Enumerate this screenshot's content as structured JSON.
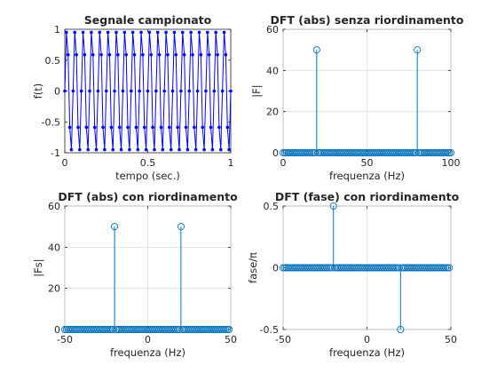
{
  "chart_data": [
    {
      "id": "ax1",
      "type": "line",
      "title": "Segnale campionato",
      "xlabel": "tempo (sec.)",
      "ylabel": "f(t)",
      "xlim": [
        0,
        1
      ],
      "ylim": [
        -1,
        1
      ],
      "xticks": [
        0,
        0.5,
        1
      ],
      "xtick_labels": [
        "0",
        "0.5",
        "1"
      ],
      "yticks": [
        -1,
        -0.5,
        0,
        0.5,
        1
      ],
      "ytick_labels": [
        "-1",
        "-0.5",
        "0",
        "0.5",
        "1"
      ],
      "grid": false,
      "markers": true,
      "color": "#0000ff",
      "series": [
        {
          "x": [
            0,
            0.01,
            0.02,
            0.03,
            0.04,
            0.05,
            0.06,
            0.07,
            0.08,
            0.09,
            0.1,
            0.11,
            0.12,
            0.13,
            0.14,
            0.15,
            0.16,
            0.17,
            0.18,
            0.19,
            0.2,
            0.21,
            0.22,
            0.23,
            0.24,
            0.25,
            0.26,
            0.27,
            0.28,
            0.29,
            0.3,
            0.31,
            0.32,
            0.33,
            0.34,
            0.35,
            0.36,
            0.37,
            0.38,
            0.39,
            0.4,
            0.41,
            0.42,
            0.43,
            0.44,
            0.45,
            0.46,
            0.47,
            0.48,
            0.49,
            0.5,
            0.51,
            0.52,
            0.53,
            0.54,
            0.55,
            0.56,
            0.57,
            0.58,
            0.59,
            0.6,
            0.61,
            0.62,
            0.63,
            0.64,
            0.65,
            0.66,
            0.67,
            0.68,
            0.69,
            0.7,
            0.71,
            0.72,
            0.73,
            0.74,
            0.75,
            0.76,
            0.77,
            0.78,
            0.79,
            0.8,
            0.81,
            0.82,
            0.83,
            0.84,
            0.85,
            0.86,
            0.87,
            0.88,
            0.89,
            0.9,
            0.91,
            0.92,
            0.93,
            0.94,
            0.95,
            0.96,
            0.97,
            0.98,
            0.99,
            1.0
          ],
          "y": [
            0,
            0.951,
            0.588,
            -0.588,
            -0.951,
            0,
            0.951,
            0.588,
            -0.588,
            -0.951,
            0,
            0.951,
            0.588,
            -0.588,
            -0.951,
            0,
            0.951,
            0.588,
            -0.588,
            -0.951,
            0,
            0.951,
            0.588,
            -0.588,
            -0.951,
            0,
            0.951,
            0.588,
            -0.588,
            -0.951,
            0,
            0.951,
            0.588,
            -0.588,
            -0.951,
            0,
            0.951,
            0.588,
            -0.588,
            -0.951,
            0,
            0.951,
            0.588,
            -0.588,
            -0.951,
            0,
            0.951,
            0.588,
            -0.588,
            -0.951,
            0,
            0.951,
            0.588,
            -0.588,
            -0.951,
            0,
            0.951,
            0.588,
            -0.588,
            -0.951,
            0,
            0.951,
            0.588,
            -0.588,
            -0.951,
            0,
            0.951,
            0.588,
            -0.588,
            -0.951,
            0,
            0.951,
            0.588,
            -0.588,
            -0.951,
            0,
            0.951,
            0.588,
            -0.588,
            -0.951,
            0,
            0.951,
            0.588,
            -0.588,
            -0.951,
            0,
            0.951,
            0.588,
            -0.588,
            -0.951,
            0,
            0.951,
            0.588,
            -0.588,
            -0.951,
            0,
            0.951,
            0.588,
            -0.588,
            -0.951,
            0
          ]
        }
      ]
    },
    {
      "id": "ax2",
      "type": "stem",
      "title": "DFT (abs) senza riordinamento",
      "xlabel": "frequenza (Hz)",
      "ylabel": "|F|",
      "xlim": [
        0,
        100
      ],
      "ylim": [
        0,
        60
      ],
      "xticks": [
        0,
        50,
        100
      ],
      "xtick_labels": [
        "0",
        "50",
        "100"
      ],
      "yticks": [
        0,
        20,
        40,
        60
      ],
      "ytick_labels": [
        "0",
        "20",
        "40",
        "60"
      ],
      "grid": true,
      "color": "#0072bd",
      "series": [
        {
          "x": [
            0,
            1,
            2,
            3,
            4,
            5,
            6,
            7,
            8,
            9,
            10,
            11,
            12,
            13,
            14,
            15,
            16,
            17,
            18,
            19,
            20,
            21,
            22,
            23,
            24,
            25,
            26,
            27,
            28,
            29,
            30,
            31,
            32,
            33,
            34,
            35,
            36,
            37,
            38,
            39,
            40,
            41,
            42,
            43,
            44,
            45,
            46,
            47,
            48,
            49,
            50,
            51,
            52,
            53,
            54,
            55,
            56,
            57,
            58,
            59,
            60,
            61,
            62,
            63,
            64,
            65,
            66,
            67,
            68,
            69,
            70,
            71,
            72,
            73,
            74,
            75,
            76,
            77,
            78,
            79,
            80,
            81,
            82,
            83,
            84,
            85,
            86,
            87,
            88,
            89,
            90,
            91,
            92,
            93,
            94,
            95,
            96,
            97,
            98,
            99,
            100
          ],
          "y": [
            0,
            0,
            0,
            0,
            0,
            0,
            0,
            0,
            0,
            0,
            0,
            0,
            0,
            0,
            0,
            0,
            0,
            0,
            0,
            0,
            50,
            0,
            0,
            0,
            0,
            0,
            0,
            0,
            0,
            0,
            0,
            0,
            0,
            0,
            0,
            0,
            0,
            0,
            0,
            0,
            0,
            0,
            0,
            0,
            0,
            0,
            0,
            0,
            0,
            0,
            0,
            0,
            0,
            0,
            0,
            0,
            0,
            0,
            0,
            0,
            0,
            0,
            0,
            0,
            0,
            0,
            0,
            0,
            0,
            0,
            0,
            0,
            0,
            0,
            0,
            0,
            0,
            0,
            0,
            0,
            50,
            0,
            0,
            0,
            0,
            0,
            0,
            0,
            0,
            0,
            0,
            0,
            0,
            0,
            0,
            0,
            0,
            0,
            0,
            0,
            0
          ]
        }
      ]
    },
    {
      "id": "ax3",
      "type": "stem",
      "title": "DFT (abs) con riordinamento",
      "xlabel": "frequenza (Hz)",
      "ylabel": "|Fs|",
      "xlim": [
        -50,
        50
      ],
      "ylim": [
        0,
        60
      ],
      "xticks": [
        -50,
        0,
        50
      ],
      "xtick_labels": [
        "-50",
        "0",
        "50"
      ],
      "yticks": [
        0,
        20,
        40,
        60
      ],
      "ytick_labels": [
        "0",
        "20",
        "40",
        "60"
      ],
      "grid": true,
      "color": "#0072bd",
      "series": [
        {
          "x": [
            -50,
            -49,
            -48,
            -47,
            -46,
            -45,
            -44,
            -43,
            -42,
            -41,
            -40,
            -39,
            -38,
            -37,
            -36,
            -35,
            -34,
            -33,
            -32,
            -31,
            -30,
            -29,
            -28,
            -27,
            -26,
            -25,
            -24,
            -23,
            -22,
            -21,
            -20,
            -19,
            -18,
            -17,
            -16,
            -15,
            -14,
            -13,
            -12,
            -11,
            -10,
            -9,
            -8,
            -7,
            -6,
            -5,
            -4,
            -3,
            -2,
            -1,
            0,
            1,
            2,
            3,
            4,
            5,
            6,
            7,
            8,
            9,
            10,
            11,
            12,
            13,
            14,
            15,
            16,
            17,
            18,
            19,
            20,
            21,
            22,
            23,
            24,
            25,
            26,
            27,
            28,
            29,
            30,
            31,
            32,
            33,
            34,
            35,
            36,
            37,
            38,
            39,
            40,
            41,
            42,
            43,
            44,
            45,
            46,
            47,
            48,
            49
          ],
          "y": [
            0,
            0,
            0,
            0,
            0,
            0,
            0,
            0,
            0,
            0,
            0,
            0,
            0,
            0,
            0,
            0,
            0,
            0,
            0,
            0,
            0,
            0,
            0,
            0,
            0,
            0,
            0,
            0,
            0,
            0,
            50,
            0,
            0,
            0,
            0,
            0,
            0,
            0,
            0,
            0,
            0,
            0,
            0,
            0,
            0,
            0,
            0,
            0,
            0,
            0,
            0,
            0,
            0,
            0,
            0,
            0,
            0,
            0,
            0,
            0,
            0,
            0,
            0,
            0,
            0,
            0,
            0,
            0,
            0,
            0,
            50,
            0,
            0,
            0,
            0,
            0,
            0,
            0,
            0,
            0,
            0,
            0,
            0,
            0,
            0,
            0,
            0,
            0,
            0,
            0,
            0,
            0,
            0,
            0,
            0,
            0,
            0,
            0,
            0,
            0
          ]
        }
      ]
    },
    {
      "id": "ax4",
      "type": "stem",
      "title": "DFT (fase) con riordinamento",
      "xlabel": "frequenza (Hz)",
      "ylabel": "fase/π",
      "xlim": [
        -50,
        50
      ],
      "ylim": [
        -0.5,
        0.5
      ],
      "xticks": [
        -50,
        0,
        50
      ],
      "xtick_labels": [
        "-50",
        "0",
        "50"
      ],
      "yticks": [
        -0.5,
        0,
        0.5
      ],
      "ytick_labels": [
        "-0.5",
        "0",
        "0.5"
      ],
      "grid": true,
      "color": "#0072bd",
      "series": [
        {
          "x": [
            -50,
            -49,
            -48,
            -47,
            -46,
            -45,
            -44,
            -43,
            -42,
            -41,
            -40,
            -39,
            -38,
            -37,
            -36,
            -35,
            -34,
            -33,
            -32,
            -31,
            -30,
            -29,
            -28,
            -27,
            -26,
            -25,
            -24,
            -23,
            -22,
            -21,
            -20,
            -19,
            -18,
            -17,
            -16,
            -15,
            -14,
            -13,
            -12,
            -11,
            -10,
            -9,
            -8,
            -7,
            -6,
            -5,
            -4,
            -3,
            -2,
            -1,
            0,
            1,
            2,
            3,
            4,
            5,
            6,
            7,
            8,
            9,
            10,
            11,
            12,
            13,
            14,
            15,
            16,
            17,
            18,
            19,
            20,
            21,
            22,
            23,
            24,
            25,
            26,
            27,
            28,
            29,
            30,
            31,
            32,
            33,
            34,
            35,
            36,
            37,
            38,
            39,
            40,
            41,
            42,
            43,
            44,
            45,
            46,
            47,
            48,
            49
          ],
          "y": [
            0,
            0,
            0,
            0,
            0,
            0,
            0,
            0,
            0,
            0,
            0,
            0,
            0,
            0,
            0,
            0,
            0,
            0,
            0,
            0,
            0,
            0,
            0,
            0,
            0,
            0,
            0,
            0,
            0,
            0,
            0.5,
            0,
            0,
            0,
            0,
            0,
            0,
            0,
            0,
            0,
            0,
            0,
            0,
            0,
            0,
            0,
            0,
            0,
            0,
            0,
            0,
            0,
            0,
            0,
            0,
            0,
            0,
            0,
            0,
            0,
            0,
            0,
            0,
            0,
            0,
            0,
            0,
            0,
            0,
            0,
            -0.5,
            0,
            0,
            0,
            0,
            0,
            0,
            0,
            0,
            0,
            0,
            0,
            0,
            0,
            0,
            0,
            0,
            0,
            0,
            0,
            0,
            0,
            0,
            0,
            0,
            0,
            0,
            0,
            0,
            0
          ]
        }
      ]
    }
  ]
}
